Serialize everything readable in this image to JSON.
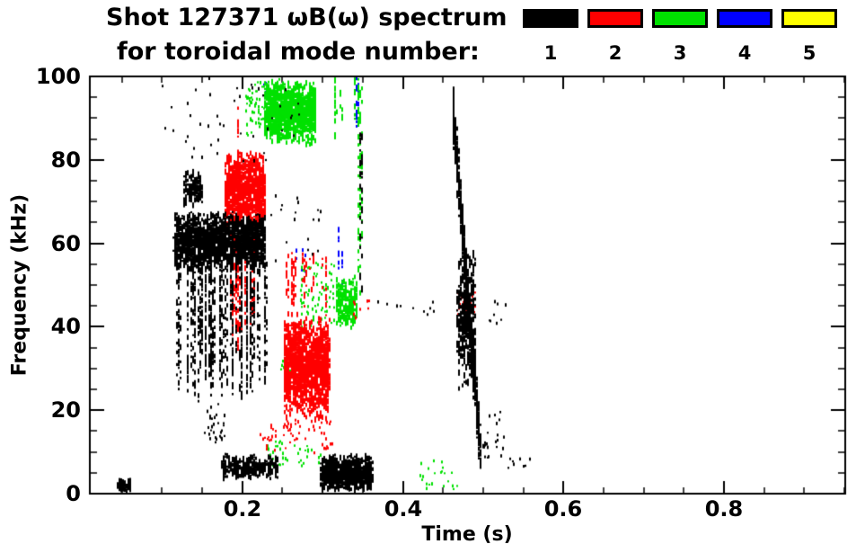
{
  "header": {
    "title": "Shot 127371 ωB(ω) spectrum",
    "subtitle": "for toroidal mode number:",
    "legend": [
      {
        "label": "1",
        "color": "#000000"
      },
      {
        "label": "2",
        "color": "#ff0000"
      },
      {
        "label": "3",
        "color": "#00e100"
      },
      {
        "label": "4",
        "color": "#0000ff"
      },
      {
        "label": "5",
        "color": "#ffff00"
      }
    ]
  },
  "chart_data": {
    "type": "scatter",
    "title": "Shot 127371 ωB(ω) spectrum for toroidal mode number: 1 2 3 4 5",
    "xlabel": "Time (s)",
    "ylabel": "Frequency (kHz)",
    "xlim": [
      0.01,
      0.951
    ],
    "ylim": [
      0,
      100
    ],
    "xticks": [
      0.2,
      0.4,
      0.6,
      0.8
    ],
    "yticks": [
      0,
      20,
      40,
      60,
      80,
      100
    ],
    "xtick_labels": [
      "0.2",
      "0.4",
      "0.6",
      "0.8"
    ],
    "ytick_labels": [
      "0",
      "20",
      "40",
      "60",
      "80",
      "100"
    ],
    "x_minor_step": 0.05,
    "y_minor_step": 5,
    "grid": false,
    "legend_position": "top-right",
    "series": [
      {
        "name": "n=1",
        "color": "#000000",
        "clusters": [
          {
            "style": "blob",
            "t": [
              0.115,
              0.228
            ],
            "f": [
              54,
              68
            ],
            "n": 1700,
            "seed": 11
          },
          {
            "style": "vstreaks",
            "t": [
              0.115,
              0.23
            ],
            "f": [
              22,
              58
            ],
            "m": 60,
            "seed": 12
          },
          {
            "style": "blob",
            "t": [
              0.127,
              0.15
            ],
            "f": [
              69,
              78
            ],
            "n": 130,
            "seed": 13
          },
          {
            "style": "dots",
            "t": [
              0.1,
              0.27
            ],
            "f": [
              80,
              100
            ],
            "n": 45,
            "seed": 14
          },
          {
            "style": "blob",
            "t": [
              0.175,
              0.245
            ],
            "f": [
              4,
              10
            ],
            "n": 280,
            "seed": 15
          },
          {
            "style": "dots",
            "t": [
              0.15,
              0.178
            ],
            "f": [
              12,
              22
            ],
            "n": 30,
            "seed": 16
          },
          {
            "style": "blob",
            "t": [
              0.298,
              0.362
            ],
            "f": [
              1,
              10
            ],
            "n": 900,
            "seed": 17
          },
          {
            "style": "chirp",
            "t": [
              0.462,
              0.497
            ],
            "f": [
              10,
              93
            ],
            "spread": 7,
            "n": 650,
            "seed": 18
          },
          {
            "style": "blob",
            "t": [
              0.468,
              0.49
            ],
            "f": [
              25,
              60
            ],
            "n": 350,
            "seed": 26
          },
          {
            "style": "dots",
            "t": [
              0.5,
              0.527
            ],
            "f": [
              8,
              20
            ],
            "n": 25,
            "seed": 19
          },
          {
            "style": "blob",
            "t": [
              0.044,
              0.062
            ],
            "f": [
              1,
              4
            ],
            "n": 70,
            "seed": 20
          },
          {
            "style": "dots",
            "t": [
              0.36,
              0.445
            ],
            "f": [
              43,
              48
            ],
            "n": 10,
            "seed": 21
          },
          {
            "style": "dots",
            "t": [
              0.53,
              0.565
            ],
            "f": [
              6,
              10
            ],
            "n": 8,
            "seed": 22
          },
          {
            "style": "dots",
            "t": [
              0.235,
              0.3
            ],
            "f": [
              55,
              72
            ],
            "n": 18,
            "seed": 23
          },
          {
            "style": "vstreaks",
            "t": [
              0.345,
              0.352
            ],
            "f": [
              45,
              92
            ],
            "m": 2,
            "seed": 24
          },
          {
            "style": "dots",
            "t": [
              0.5,
              0.53
            ],
            "f": [
              40,
              47
            ],
            "n": 8,
            "seed": 25
          }
        ]
      },
      {
        "name": "n=2",
        "color": "#ff0000",
        "clusters": [
          {
            "style": "blob",
            "t": [
              0.178,
              0.228
            ],
            "f": [
              64,
              83
            ],
            "n": 1000,
            "seed": 31
          },
          {
            "style": "vstreaks",
            "t": [
              0.183,
              0.215
            ],
            "f": [
              38,
              64
            ],
            "m": 14,
            "seed": 32
          },
          {
            "style": "vstreaks",
            "t": [
              0.191,
              0.197
            ],
            "f": [
              15,
              97
            ],
            "m": 2,
            "seed": 33
          },
          {
            "style": "blob",
            "t": [
              0.252,
              0.308
            ],
            "f": [
              18,
              44
            ],
            "n": 1400,
            "seed": 34
          },
          {
            "style": "vstreaks",
            "t": [
              0.255,
              0.305
            ],
            "f": [
              44,
              58
            ],
            "m": 16,
            "seed": 35
          },
          {
            "style": "dots",
            "t": [
              0.25,
              0.312
            ],
            "f": [
              10,
              18
            ],
            "n": 45,
            "seed": 36
          },
          {
            "style": "dots",
            "t": [
              0.468,
              0.49
            ],
            "f": [
              43,
              49
            ],
            "n": 40,
            "seed": 37
          },
          {
            "style": "dots",
            "t": [
              0.22,
              0.242
            ],
            "f": [
              10,
              17
            ],
            "n": 16,
            "seed": 38
          },
          {
            "style": "dots",
            "t": [
              0.338,
              0.36
            ],
            "f": [
              42,
              47
            ],
            "n": 8,
            "seed": 39
          }
        ]
      },
      {
        "name": "n=3",
        "color": "#00e100",
        "clusters": [
          {
            "style": "blob",
            "t": [
              0.228,
              0.292
            ],
            "f": [
              84,
              100
            ],
            "n": 1100,
            "seed": 41
          },
          {
            "style": "dots",
            "t": [
              0.204,
              0.23
            ],
            "f": [
              86,
              99
            ],
            "n": 55,
            "seed": 42
          },
          {
            "style": "vstreaks",
            "t": [
              0.312,
              0.345
            ],
            "f": [
              86,
              100
            ],
            "m": 9,
            "seed": 43
          },
          {
            "style": "blob",
            "t": [
              0.317,
              0.343
            ],
            "f": [
              40,
              53
            ],
            "n": 240,
            "seed": 44
          },
          {
            "style": "dots",
            "t": [
              0.272,
              0.314
            ],
            "f": [
              40,
              56
            ],
            "n": 85,
            "seed": 45
          },
          {
            "style": "vstreaks",
            "t": [
              0.344,
              0.353
            ],
            "f": [
              45,
              100
            ],
            "m": 3,
            "seed": 46
          },
          {
            "style": "dots",
            "t": [
              0.23,
              0.302
            ],
            "f": [
              7,
              13
            ],
            "n": 40,
            "seed": 47
          },
          {
            "style": "dots",
            "t": [
              0.418,
              0.468
            ],
            "f": [
              1,
              9
            ],
            "n": 22,
            "seed": 48
          },
          {
            "style": "dots",
            "t": [
              0.246,
              0.26
            ],
            "f": [
              27,
              33
            ],
            "n": 8,
            "seed": 49
          }
        ]
      },
      {
        "name": "n=4",
        "color": "#0000ff",
        "clusters": [
          {
            "style": "vstreaks",
            "t": [
              0.341,
              0.351
            ],
            "f": [
              84,
              100
            ],
            "m": 3,
            "seed": 51
          },
          {
            "style": "vstreaks",
            "t": [
              0.317,
              0.329
            ],
            "f": [
              50,
              64
            ],
            "m": 3,
            "seed": 52
          },
          {
            "style": "dots",
            "t": [
              0.266,
              0.278
            ],
            "f": [
              53,
              60
            ],
            "n": 7,
            "seed": 53
          },
          {
            "style": "dots",
            "t": [
              0.224,
              0.233
            ],
            "f": [
              95,
              100
            ],
            "n": 5,
            "seed": 54
          }
        ]
      },
      {
        "name": "n=5",
        "color": "#ffff00",
        "clusters": []
      }
    ]
  }
}
